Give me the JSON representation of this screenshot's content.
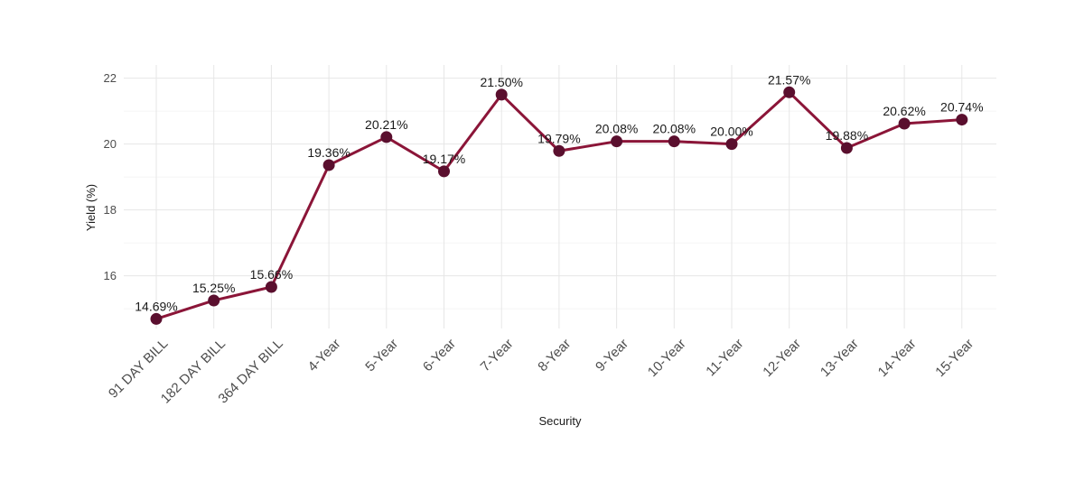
{
  "chart_data": {
    "type": "line",
    "title": "",
    "xlabel": "Security",
    "ylabel": "Yield (%)",
    "categories": [
      "91 DAY BILL",
      "182 DAY BILL",
      "364 DAY BILL",
      "4-Year",
      "5-Year",
      "6-Year",
      "7-Year",
      "8-Year",
      "9-Year",
      "10-Year",
      "11-Year",
      "12-Year",
      "13-Year",
      "14-Year",
      "15-Year"
    ],
    "series": [
      {
        "values": [
          14.69,
          15.25,
          15.66,
          19.36,
          20.21,
          19.17,
          21.5,
          19.79,
          20.08,
          20.08,
          20.0,
          21.57,
          19.88,
          20.62,
          20.74
        ],
        "labels": [
          "14.69%",
          "15.25%",
          "15.66%",
          "19.36%",
          "20.21%",
          "19.17%",
          "21.50%",
          "19.79%",
          "20.08%",
          "20.08%",
          "20.00%",
          "21.57%",
          "19.88%",
          "20.62%",
          "20.74%"
        ]
      }
    ],
    "ylim": [
      14.4,
      22.4
    ],
    "yticks": [
      16,
      18,
      20,
      22
    ],
    "grid": true,
    "legend": "none",
    "line_color": "#8b1538",
    "point_color": "#5a0f2e"
  }
}
